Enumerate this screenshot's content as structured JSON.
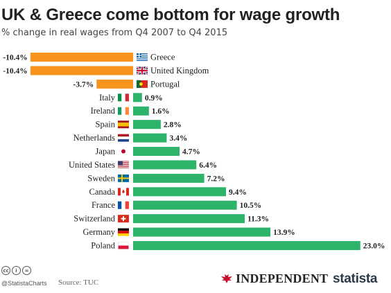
{
  "title": "UK & Greece come bottom for wage growth",
  "subtitle": "% change in real wages from Q4 2007 to Q4 2015",
  "chart_data": {
    "type": "bar",
    "orientation": "horizontal",
    "categories": [
      "Greece",
      "United Kingdom",
      "Portugal",
      "Italy",
      "Ireland",
      "Spain",
      "Netherlands",
      "Japan",
      "United States",
      "Sweden",
      "Canada",
      "France",
      "Switzerland",
      "Germany",
      "Poland"
    ],
    "values": [
      -10.4,
      -10.4,
      -3.7,
      0.9,
      1.6,
      2.8,
      3.4,
      4.7,
      6.4,
      7.2,
      9.4,
      10.5,
      11.3,
      13.9,
      23.0
    ],
    "value_labels": [
      "-10.4%",
      "-10.4%",
      "-3.7%",
      "0.9%",
      "1.6%",
      "2.8%",
      "3.4%",
      "4.7%",
      "6.4%",
      "7.2%",
      "9.4%",
      "10.5%",
      "11.3%",
      "13.9%",
      "23.0%"
    ],
    "flags": [
      "greece",
      "uk",
      "portugal",
      "italy",
      "ireland",
      "spain",
      "netherlands",
      "japan",
      "usa",
      "sweden",
      "canada",
      "france",
      "switzerland",
      "germany",
      "poland"
    ],
    "colors": {
      "negative": "#f7941d",
      "positive": "#2db36a"
    },
    "xlim": [
      -10.4,
      23.0
    ],
    "grid": false,
    "legend": "none"
  },
  "footer": {
    "handle": "@StatistaCharts",
    "source": "Source: TUC",
    "publisher": "INDEPENDENT",
    "brand": "statista",
    "cc_icons": [
      "cc",
      "i",
      "="
    ]
  }
}
